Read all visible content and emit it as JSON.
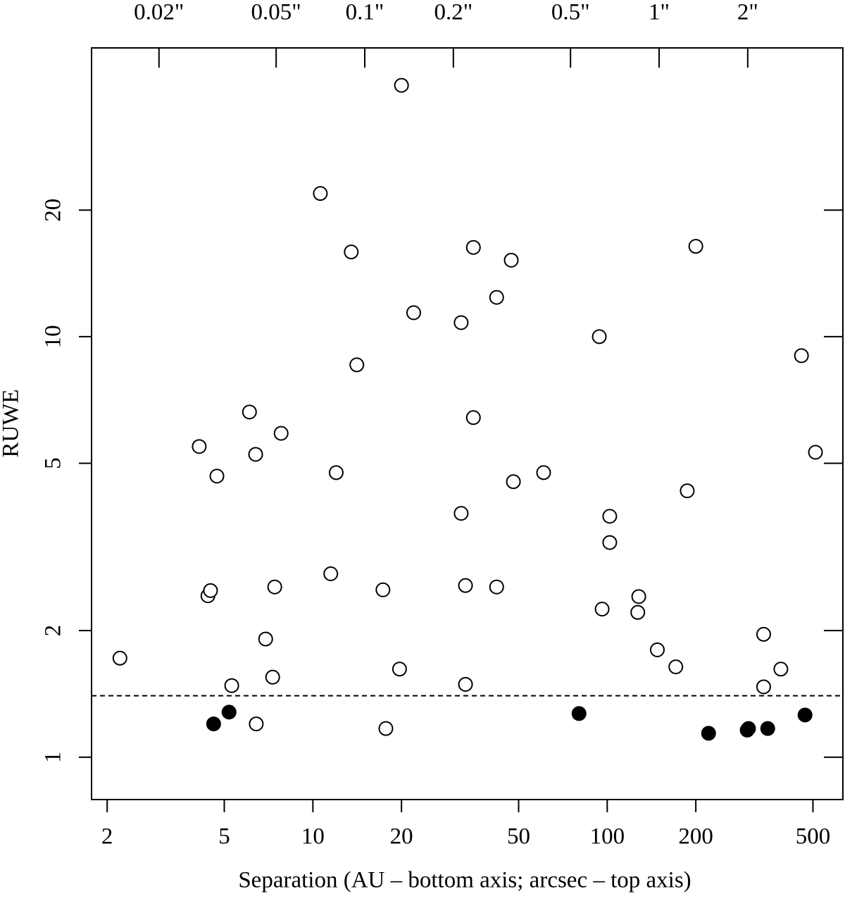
{
  "chart_data": {
    "type": "scatter",
    "x_label": "Separation (AU – bottom axis; arcsec – top axis)",
    "y_label": "RUWE",
    "xscale": "log",
    "yscale": "log",
    "xlim": [
      1.77,
      632
    ],
    "xticks": [
      2,
      5,
      10,
      20,
      50,
      100,
      200,
      500
    ],
    "x2lim": [
      0.0118,
      4.21
    ],
    "x2ticks": [
      {
        "value": 0.02,
        "label": "0.02\""
      },
      {
        "value": 0.05,
        "label": "0.05\""
      },
      {
        "value": 0.1,
        "label": "0.1\""
      },
      {
        "value": 0.2,
        "label": "0.2\""
      },
      {
        "value": 0.5,
        "label": "0.5\""
      },
      {
        "value": 1,
        "label": "1\""
      },
      {
        "value": 2,
        "label": "2\""
      }
    ],
    "ylim": [
      0.793,
      48.6
    ],
    "yticks": [
      1,
      2,
      5,
      10,
      20
    ],
    "threshold": 1.4,
    "series": [
      {
        "color": "#000000",
        "filled": false,
        "x": [
          2.21,
          4.11,
          4.72,
          4.4,
          4.49,
          5.3,
          6.09,
          6.39,
          6.42,
          6.91,
          7.42,
          7.3,
          7.8,
          10.6,
          11.5,
          12.0,
          13.5,
          14.1,
          17.3,
          17.7,
          19.7,
          20.0,
          22.0,
          31.9,
          31.9,
          33.0,
          33.0,
          35.1,
          35.1,
          42.1,
          42.1,
          47.2,
          48.0,
          60.8,
          94.0,
          96.1,
          102,
          102,
          127,
          128,
          148,
          171,
          187,
          200,
          340,
          340,
          389,
          457,
          510
        ],
        "values": [
          1.72,
          5.48,
          4.66,
          2.42,
          2.49,
          1.48,
          6.62,
          5.25,
          1.2,
          1.91,
          2.54,
          1.55,
          5.89,
          21.9,
          2.73,
          4.75,
          15.9,
          8.57,
          2.5,
          1.17,
          1.62,
          39.6,
          11.4,
          10.8,
          3.8,
          2.56,
          1.49,
          16.3,
          6.42,
          12.4,
          2.54,
          15.2,
          4.52,
          4.75,
          10.0,
          2.25,
          3.74,
          3.24,
          2.21,
          2.41,
          1.8,
          1.64,
          4.3,
          16.4,
          1.96,
          1.47,
          1.62,
          9.01,
          5.31
        ]
      },
      {
        "color": "#000000",
        "filled": true,
        "x": [
          4.6,
          5.19,
          80.2,
          221,
          299,
          302,
          351,
          470
        ],
        "values": [
          1.2,
          1.28,
          1.27,
          1.14,
          1.16,
          1.17,
          1.17,
          1.26
        ]
      }
    ]
  }
}
